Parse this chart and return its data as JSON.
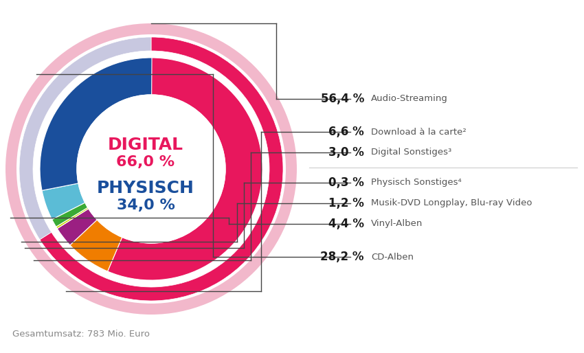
{
  "segments": [
    {
      "label": "Audio-Streaming",
      "pct": 56.4,
      "color": "#e8175d",
      "group": "digital"
    },
    {
      "label": "Download à la carte²",
      "pct": 6.6,
      "color": "#f07d00",
      "group": "digital"
    },
    {
      "label": "Digital Sonstiges³",
      "pct": 3.0,
      "color": "#9b1f82",
      "group": "digital"
    },
    {
      "label": "Physisch Sonstiges⁴",
      "pct": 0.3,
      "color": "#c8d400",
      "group": "physisch"
    },
    {
      "label": "Musik-DVD Longplay, Blu-ray Video",
      "pct": 1.2,
      "color": "#3aaa35",
      "group": "physisch"
    },
    {
      "label": "Vinyl-Alben",
      "pct": 4.4,
      "color": "#5bbcd6",
      "group": "physisch"
    },
    {
      "label": "CD-Alben",
      "pct": 28.2,
      "color": "#1a4f9c",
      "group": "physisch"
    }
  ],
  "outer_ring": [
    {
      "label": "DIGITAL",
      "pct": 66.0,
      "color": "#e8175d"
    },
    {
      "label": "PHYSISCH",
      "pct": 34.0,
      "color": "#c8c8e0"
    }
  ],
  "digital_color": "#e8175d",
  "physisch_color": "#1a4f9c",
  "outer_pink": "#f2b8cb",
  "footer": "Gesamtumsatz: 783 Mio. Euro",
  "bg_color": "#ffffff",
  "label_texts": [
    [
      "56,4 %",
      "Audio-Streaming"
    ],
    [
      "6,6 %",
      "Download à la carte²"
    ],
    [
      "3,0 %",
      "Digital Sonstiges³"
    ],
    [
      "0,3 %",
      "Physisch Sonstiges⁴"
    ],
    [
      "1,2 %",
      "Musik-DVD Longplay, Blu-ray Video"
    ],
    [
      "4,4 %",
      "Vinyl-Alben"
    ],
    [
      "28,2 %",
      "CD-Alben"
    ]
  ]
}
